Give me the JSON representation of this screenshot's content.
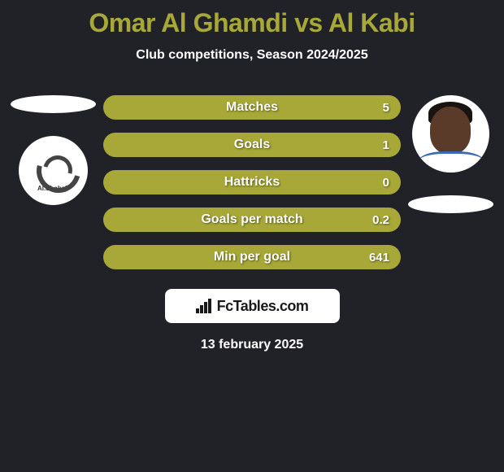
{
  "title": "Omar Al Ghamdi vs Al Kabi",
  "subtitle": "Club competitions, Season 2024/2025",
  "leftClub": {
    "name": "Al.Shabab"
  },
  "stats": [
    {
      "label": "Matches",
      "valueRight": "5"
    },
    {
      "label": "Goals",
      "valueRight": "1"
    },
    {
      "label": "Hattricks",
      "valueRight": "0"
    },
    {
      "label": "Goals per match",
      "valueRight": "0.2"
    },
    {
      "label": "Min per goal",
      "valueRight": "641"
    }
  ],
  "footer": {
    "brand": "FcTables.com"
  },
  "date": "13 february 2025",
  "colors": {
    "background": "#212128",
    "accent": "#a8a838",
    "text": "#ffffff",
    "barFill": "#a8a838"
  }
}
